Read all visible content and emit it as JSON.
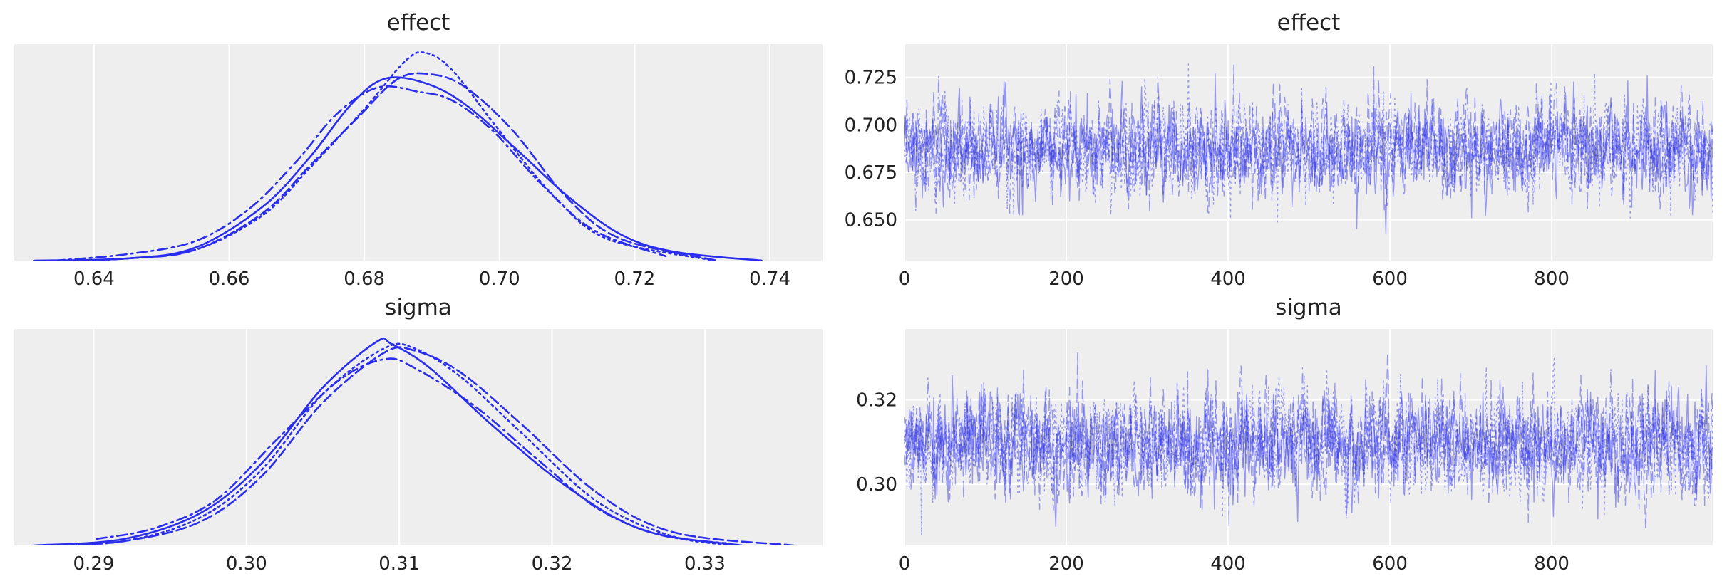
{
  "figure": {
    "line_color": "#2a2eec",
    "panel_background": "#eeeeee",
    "grid_color": "#ffffff"
  },
  "chart_data": [
    {
      "type": "line",
      "kind": "kde",
      "title": "effect",
      "xlabel": "",
      "ylabel": "",
      "xlim": [
        0.6282,
        0.7478
      ],
      "ylim": [
        0,
        1
      ],
      "xticks": [
        0.64,
        0.66,
        0.68,
        0.7,
        0.72,
        0.74
      ],
      "xtick_labels": [
        "0.64",
        "0.66",
        "0.68",
        "0.70",
        "0.72",
        "0.74"
      ],
      "yticks": [],
      "grid": "x",
      "series": [
        {
          "line_style": "solid",
          "x": [
            0.6312,
            0.645,
            0.655,
            0.665,
            0.672,
            0.678,
            0.683,
            0.689,
            0.695,
            0.703,
            0.71,
            0.718,
            0.726,
            0.7388
          ],
          "y": [
            0.0,
            0.01,
            0.06,
            0.25,
            0.48,
            0.72,
            0.84,
            0.82,
            0.72,
            0.5,
            0.3,
            0.12,
            0.04,
            0.0
          ]
        },
        {
          "line_style": "dashed",
          "x": [
            0.6345,
            0.645,
            0.655,
            0.665,
            0.672,
            0.679,
            0.685,
            0.69,
            0.695,
            0.702,
            0.71,
            0.718,
            0.7322
          ],
          "y": [
            0.0,
            0.01,
            0.05,
            0.22,
            0.44,
            0.66,
            0.84,
            0.86,
            0.8,
            0.6,
            0.29,
            0.1,
            0.0
          ]
        },
        {
          "line_style": "dotted",
          "x": [
            0.6362,
            0.645,
            0.655,
            0.665,
            0.672,
            0.68,
            0.686,
            0.689,
            0.693,
            0.7,
            0.708,
            0.716,
            0.7318
          ],
          "y": [
            0.0,
            0.01,
            0.05,
            0.21,
            0.43,
            0.7,
            0.92,
            0.96,
            0.88,
            0.6,
            0.3,
            0.1,
            0.0
          ]
        },
        {
          "line_style": "dashdot",
          "x": [
            0.6342,
            0.645,
            0.655,
            0.663,
            0.67,
            0.676,
            0.682,
            0.688,
            0.693,
            0.699,
            0.706,
            0.714,
            0.7246
          ],
          "y": [
            0.0,
            0.03,
            0.09,
            0.24,
            0.46,
            0.68,
            0.8,
            0.78,
            0.74,
            0.6,
            0.36,
            0.14,
            0.02
          ]
        }
      ]
    },
    {
      "type": "line",
      "kind": "trace",
      "title": "effect",
      "xlabel": "",
      "ylabel": "",
      "xlim": [
        0,
        999
      ],
      "ylim": [
        0.6285,
        0.7425
      ],
      "xticks": [
        0,
        200,
        400,
        600,
        800
      ],
      "xtick_labels": [
        "0",
        "200",
        "400",
        "600",
        "800"
      ],
      "yticks": [
        0.65,
        0.675,
        0.7,
        0.725
      ],
      "ytick_labels": [
        "0.650",
        "0.675",
        "0.700",
        "0.725"
      ],
      "grid": "both",
      "n_draws": 1000,
      "series_mean": 0.687,
      "series_sd": 0.0125,
      "series": [
        {
          "line_style": "solid",
          "opacity": 0.45
        },
        {
          "line_style": "dashed",
          "opacity": 0.45
        },
        {
          "line_style": "dotted",
          "opacity": 0.45
        },
        {
          "line_style": "dashdot",
          "opacity": 0.45
        }
      ]
    },
    {
      "type": "line",
      "kind": "kde",
      "title": "sigma",
      "xlabel": "",
      "ylabel": "",
      "xlim": [
        0.2848,
        0.3377
      ],
      "ylim": [
        0,
        1
      ],
      "xticks": [
        0.29,
        0.3,
        0.31,
        0.32,
        0.33
      ],
      "xtick_labels": [
        "0.29",
        "0.30",
        "0.31",
        "0.32",
        "0.33"
      ],
      "yticks": [],
      "grid": "x",
      "series": [
        {
          "line_style": "solid",
          "x": [
            0.2861,
            0.292,
            0.297,
            0.301,
            0.305,
            0.3085,
            0.3095,
            0.312,
            0.316,
            0.321,
            0.326,
            0.3324
          ],
          "y": [
            0.0,
            0.03,
            0.15,
            0.38,
            0.73,
            0.94,
            0.93,
            0.82,
            0.56,
            0.27,
            0.07,
            0.0
          ]
        },
        {
          "line_style": "dashed",
          "x": [
            0.2871,
            0.292,
            0.297,
            0.301,
            0.305,
            0.309,
            0.311,
            0.314,
            0.318,
            0.323,
            0.328,
            0.3358
          ],
          "y": [
            0.0,
            0.02,
            0.11,
            0.32,
            0.66,
            0.89,
            0.9,
            0.8,
            0.56,
            0.24,
            0.06,
            0.0
          ]
        },
        {
          "line_style": "dotted",
          "x": [
            0.2863,
            0.292,
            0.297,
            0.301,
            0.305,
            0.309,
            0.311,
            0.314,
            0.318,
            0.323,
            0.328,
            0.3324
          ],
          "y": [
            0.0,
            0.02,
            0.13,
            0.35,
            0.7,
            0.91,
            0.91,
            0.78,
            0.52,
            0.2,
            0.04,
            0.0
          ]
        },
        {
          "line_style": "dashdot",
          "x": [
            0.2902,
            0.294,
            0.298,
            0.302,
            0.306,
            0.309,
            0.311,
            0.315,
            0.319,
            0.323,
            0.327,
            0.3314
          ],
          "y": [
            0.03,
            0.08,
            0.21,
            0.49,
            0.76,
            0.86,
            0.82,
            0.64,
            0.4,
            0.17,
            0.05,
            0.01
          ]
        }
      ]
    },
    {
      "type": "line",
      "kind": "trace",
      "title": "sigma",
      "xlabel": "",
      "ylabel": "",
      "xlim": [
        0,
        999
      ],
      "ylim": [
        0.2855,
        0.3368
      ],
      "xticks": [
        0,
        200,
        400,
        600,
        800
      ],
      "xtick_labels": [
        "0",
        "200",
        "400",
        "600",
        "800"
      ],
      "yticks": [
        0.3,
        0.32
      ],
      "ytick_labels": [
        "0.30",
        "0.32"
      ],
      "grid": "both",
      "n_draws": 1000,
      "series_mean": 0.3095,
      "series_sd": 0.006,
      "series": [
        {
          "line_style": "solid",
          "opacity": 0.45
        },
        {
          "line_style": "dashed",
          "opacity": 0.45
        },
        {
          "line_style": "dotted",
          "opacity": 0.45
        },
        {
          "line_style": "dashdot",
          "opacity": 0.45
        }
      ]
    }
  ]
}
